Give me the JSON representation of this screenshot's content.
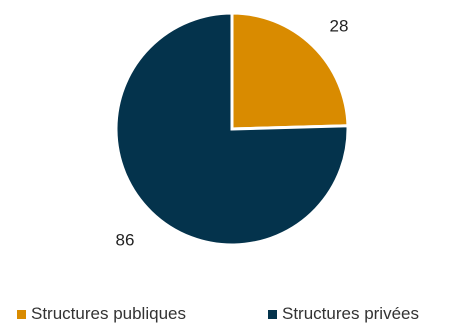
{
  "chart_data": {
    "type": "pie",
    "title": "",
    "labels": [
      "Structures publiques",
      "Structures privées"
    ],
    "values": [
      28,
      86
    ],
    "value_labels": [
      "28",
      "86"
    ],
    "colors": [
      "#D98B00",
      "#04334C"
    ],
    "legend": {
      "position": "bottom"
    }
  }
}
